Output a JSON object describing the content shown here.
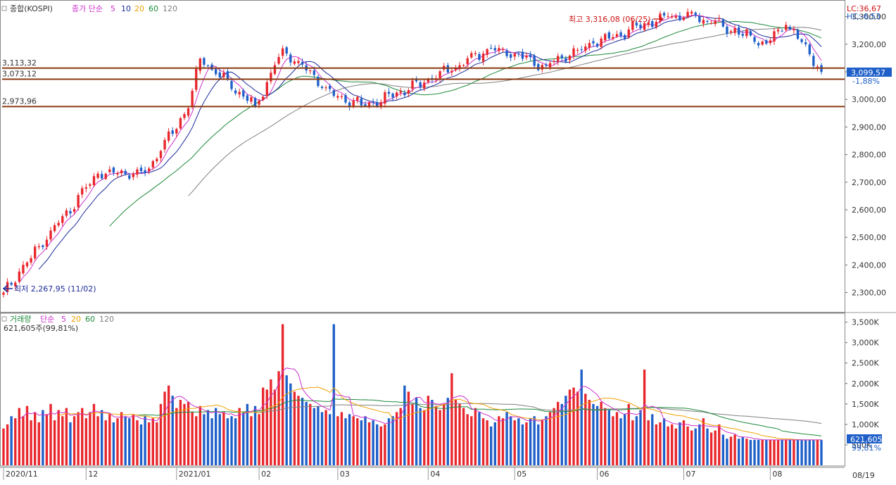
{
  "price_panel": {
    "legend": {
      "symbol": "종합(KOSPI)",
      "ma_label": "종가 단순",
      "periods": [
        "5",
        "10",
        "20",
        "60",
        "120"
      ]
    },
    "lc_label": "LC:36,67",
    "hc_label": "HC:-6,53",
    "high_annotation": "최고 3,316,08 (06/25)",
    "low_annotation": "최저 2,267,95 (11/02)",
    "last_price": "3,099,57",
    "change_pct": "-1,88%",
    "h_lines": [
      {
        "label": "3,113,32",
        "value": 3113.32
      },
      {
        "label": "3,073,12",
        "value": 3073.12
      },
      {
        "label": "2,973,96",
        "value": 2973.96
      }
    ],
    "y_ticks": [
      "3,300,00",
      "3,200,00",
      "3,100,00",
      "3,000,00",
      "2,900,00",
      "2,800,00",
      "2,700,00",
      "2,600,00",
      "2,500,00",
      "2,400,00",
      "2,300,00"
    ]
  },
  "volume_panel": {
    "legend": {
      "label": "거래량",
      "ma_label": "단순",
      "periods": [
        "5",
        "20",
        "60",
        "120"
      ]
    },
    "info": "621,605주(99,81%)",
    "last_value": "621,605",
    "last_pct": "99,81%",
    "y_ticks": [
      "3,500K",
      "3,000K",
      "2,500K",
      "2,000K",
      "1,500K",
      "1,000K",
      "500K"
    ]
  },
  "x_axis": {
    "labels": [
      "2020/11",
      "12",
      "2021/01",
      "02",
      "03",
      "04",
      "05",
      "06",
      "07",
      "08"
    ],
    "date_box": "08/19"
  },
  "colors": {
    "up": "#e8262c",
    "down": "#1e5fc8",
    "ma5": "#cc33cc",
    "ma10": "#1a2a9a",
    "ma20": "#f0a000",
    "ma60": "#1e8a3a",
    "ma120": "#808080",
    "hline": "#8b3a10",
    "annotation_high": "#cc1111",
    "annotation_low": "#1a2a9a"
  },
  "chart_data": [
    {
      "type": "candlestick",
      "title": "종합(KOSPI)",
      "x_range": [
        "2020-11-02",
        "2021-08-19"
      ],
      "ylim": [
        2230,
        3345
      ],
      "grid": false,
      "moving_averages": [
        "5",
        "10",
        "20",
        "60",
        "120"
      ],
      "anchors": [
        {
          "date": "2020-11-02",
          "close": 2300
        },
        {
          "date": "2020-11-20",
          "close": 2553
        },
        {
          "date": "2020-12-04",
          "close": 2731
        },
        {
          "date": "2020-12-22",
          "close": 2733
        },
        {
          "date": "2021-01-06",
          "close": 2968
        },
        {
          "date": "2021-01-11",
          "close": 3148
        },
        {
          "date": "2021-01-29",
          "close": 2976
        },
        {
          "date": "2021-02-09",
          "close": 3185
        },
        {
          "date": "2021-02-26",
          "close": 3013
        },
        {
          "date": "2021-03-10",
          "close": 2976
        },
        {
          "date": "2021-03-31",
          "close": 3061
        },
        {
          "date": "2021-04-23",
          "close": 3186
        },
        {
          "date": "2021-05-13",
          "close": 3122
        },
        {
          "date": "2021-05-31",
          "close": 3203
        },
        {
          "date": "2021-06-25",
          "close": 3302
        },
        {
          "date": "2021-07-06",
          "close": 3305
        },
        {
          "date": "2021-07-30",
          "close": 3202
        },
        {
          "date": "2021-08-06",
          "close": 3270
        },
        {
          "date": "2021-08-12",
          "close": 3208
        },
        {
          "date": "2021-08-19",
          "close": 3099.57
        }
      ],
      "period_high": {
        "date": "2021-06-25",
        "value": 3316.08
      },
      "period_low": {
        "date": "2020-11-02",
        "value": 2267.95
      },
      "last_close": 3099.57,
      "change_pct": -1.88
    },
    {
      "type": "bar",
      "title": "거래량",
      "unit": "K",
      "ylim": [
        0,
        3700
      ],
      "moving_averages": [
        "5",
        "20",
        "60",
        "120"
      ],
      "notable_values": [
        {
          "date": "2021-02-26",
          "value": 3450
        },
        {
          "date": "2021-06-17",
          "value": 2340
        },
        {
          "date": "2021-08-19",
          "value": 621.605
        }
      ],
      "series": [
        {
          "name": "2020/11",
          "values": [
            900,
            1000,
            1200,
            1150,
            1400,
            1200,
            1450,
            1100,
            1300,
            1050,
            1350,
            1250,
            1500,
            1100,
            1350,
            1200,
            1400,
            1050,
            1200,
            1300
          ]
        },
        {
          "name": "12",
          "values": [
            1400,
            1150,
            1300,
            1500,
            1200,
            1350,
            1100,
            1250,
            1050,
            1150,
            1300,
            1200,
            1150,
            1250,
            1100,
            1000,
            1200,
            1050,
            1150,
            1050
          ]
        },
        {
          "name": "2021/01",
          "values": [
            1500,
            1800,
            1950,
            1700,
            1400,
            1600,
            1500,
            1550,
            1300,
            1200,
            1450,
            1250,
            1350,
            1150,
            1400,
            1250,
            1300,
            1150,
            1200
          ]
        },
        {
          "name": "02",
          "values": [
            1150,
            1400,
            1300,
            1500,
            1200,
            1450,
            1250,
            1900,
            1850,
            2100,
            1850,
            2300,
            3450,
            2200,
            2000
          ]
        },
        {
          "name": "03",
          "values": [
            1800,
            1700,
            1650,
            1550,
            1500,
            1400,
            1450,
            1300,
            1350,
            1250,
            1400,
            1200,
            1300,
            1150,
            1250,
            1200,
            1150,
            1100,
            1200,
            1050,
            1100,
            1000,
            950
          ]
        },
        {
          "name": "04",
          "values": [
            1000,
            1150,
            1200,
            1300,
            1400,
            1950,
            1800,
            1500,
            1650,
            1400,
            1350,
            1700,
            1600,
            1450,
            1350,
            1500,
            1650,
            2250,
            1600,
            1500,
            1400
          ]
        },
        {
          "name": "05",
          "values": [
            1250,
            1200,
            1400,
            1300,
            1150,
            1100,
            950,
            1050,
            1200,
            1150,
            1300,
            1200,
            1100,
            1150,
            1000,
            1050,
            1150,
            1200,
            1000
          ]
        },
        {
          "name": "06",
          "values": [
            1100,
            1200,
            1300,
            1400,
            1550,
            1500,
            1700,
            1850,
            1900,
            1800,
            2340,
            1750,
            1600,
            1500,
            1450,
            1550,
            1400,
            1350,
            1200,
            1300,
            1150
          ]
        },
        {
          "name": "07",
          "values": [
            1250,
            1500,
            1100,
            1200,
            1350,
            1200,
            1100,
            1250,
            1000,
            1050,
            1150,
            950,
            1000,
            900,
            1050,
            1100,
            950,
            850,
            900,
            1000,
            1150,
            900
          ]
        },
        {
          "name": "08",
          "values": [
            800,
            850,
            1000,
            750,
            650,
            700,
            750,
            650,
            700,
            650,
            620,
            622,
            622
          ]
        }
      ]
    }
  ]
}
